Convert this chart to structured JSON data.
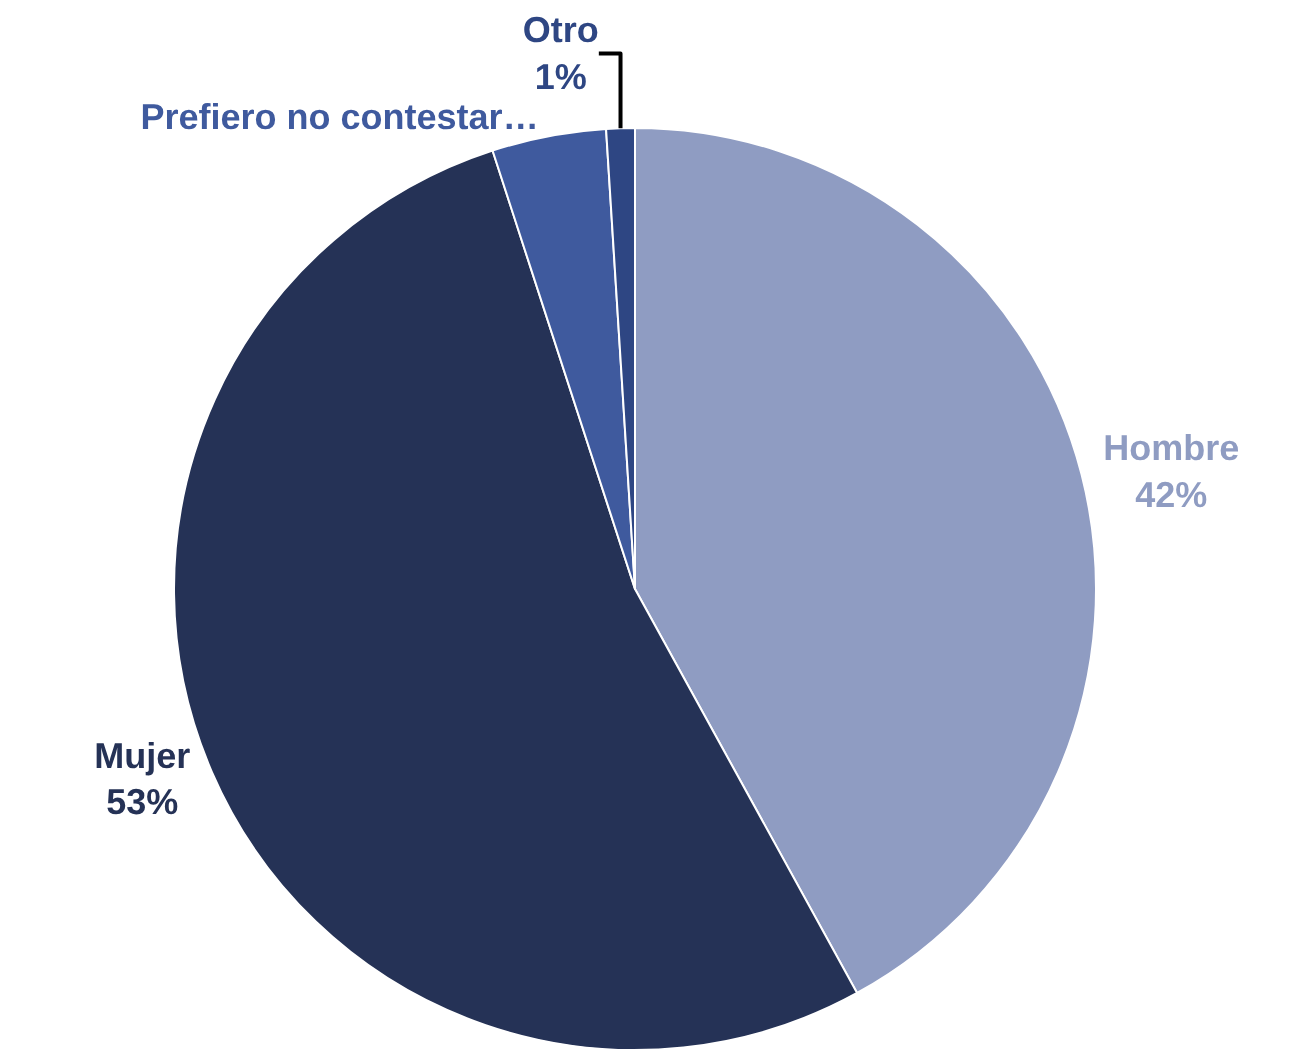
{
  "chart_data": {
    "type": "pie",
    "categories": [
      "Hombre",
      "Mujer",
      "Prefiero no contestar…",
      "Otro"
    ],
    "values": [
      42,
      53,
      4,
      1
    ],
    "colors": [
      "#8f9cc2",
      "#253256",
      "#3f5a9e",
      "#2e4683"
    ],
    "value_labels": [
      "42%",
      "53%",
      null,
      "1%"
    ],
    "legend": false
  }
}
